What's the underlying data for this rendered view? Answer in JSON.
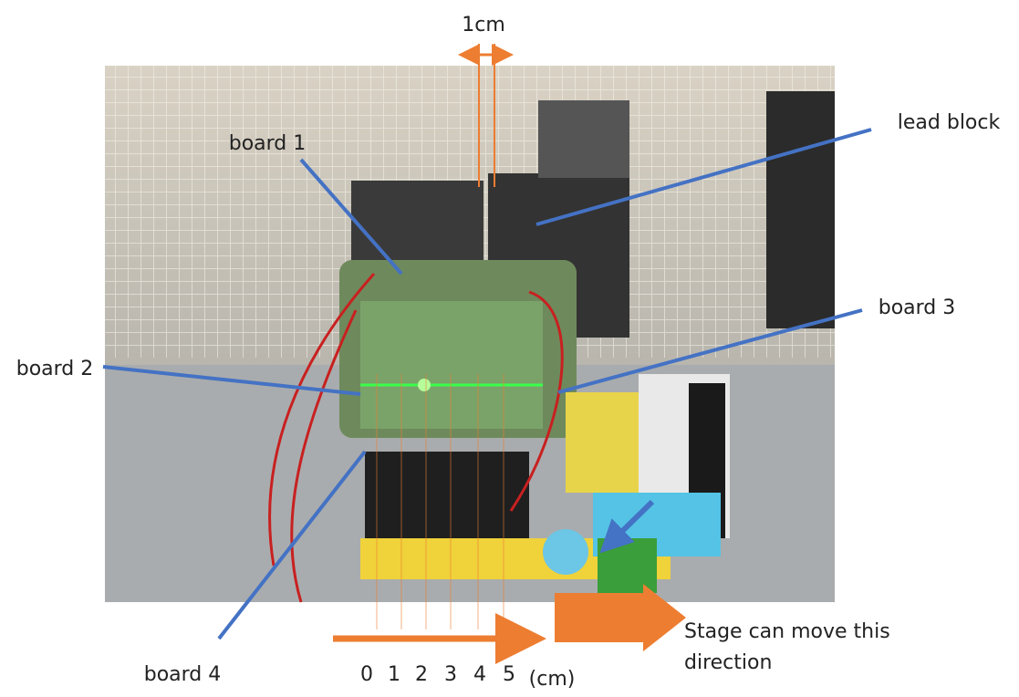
{
  "scale_label": "1cm",
  "labels": {
    "lead_block": "lead block",
    "board_1": "board 1",
    "board_2": "board 2",
    "board_3": "board 3",
    "board_4": "board 4"
  },
  "scale": {
    "ticks": [
      0,
      1,
      2,
      3,
      4,
      5
    ],
    "unit": "(cm)"
  },
  "stage_note": {
    "line1": "Stage can move this",
    "line2": "direction"
  }
}
